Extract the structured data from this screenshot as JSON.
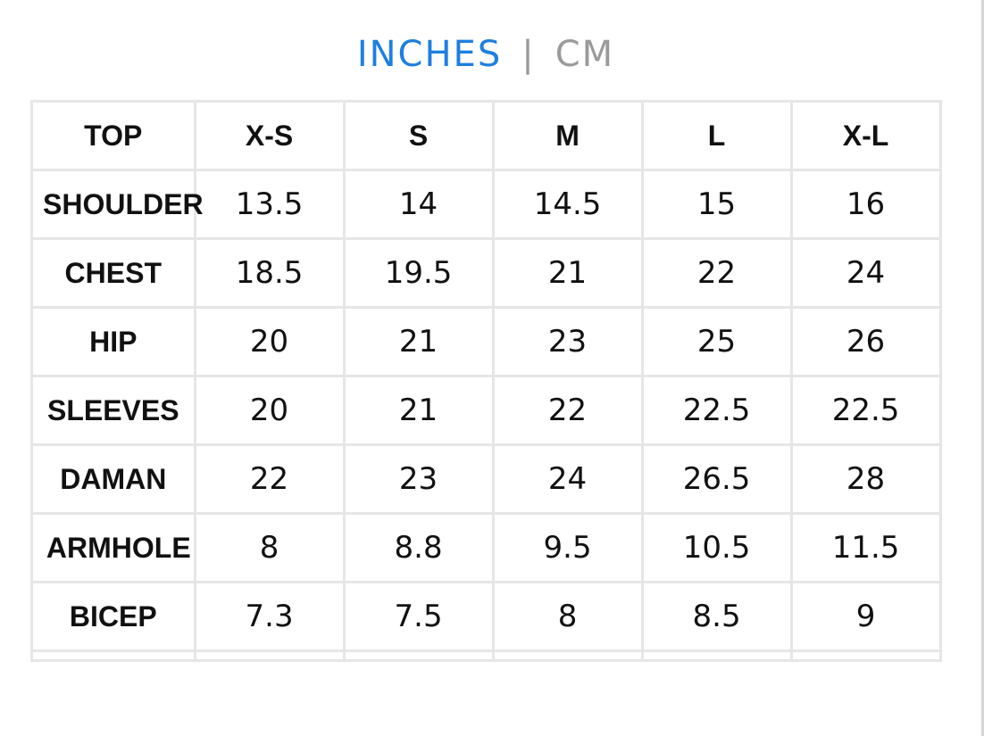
{
  "unit_toggle": {
    "inches_label": "INCHES",
    "separator": "|",
    "cm_label": "CM",
    "active": "INCHES",
    "active_color": "#1e7fe0",
    "inactive_color": "#9a9a9a"
  },
  "table": {
    "header": [
      "TOP",
      "X-S",
      "S",
      "M",
      "L",
      "X-L"
    ],
    "rows": [
      {
        "label": "SHOULDER",
        "values": [
          "13.5",
          "14",
          "14.5",
          "15",
          "16"
        ]
      },
      {
        "label": "CHEST",
        "values": [
          "18.5",
          "19.5",
          "21",
          "22",
          "24"
        ]
      },
      {
        "label": "HIP",
        "values": [
          "20",
          "21",
          "23",
          "25",
          "26"
        ]
      },
      {
        "label": "SLEEVES",
        "values": [
          "20",
          "21",
          "22",
          "22.5",
          "22.5"
        ]
      },
      {
        "label": "DAMAN",
        "values": [
          "22",
          "23",
          "24",
          "26.5",
          "28"
        ]
      },
      {
        "label": "ARMHOLE",
        "values": [
          "8",
          "8.8",
          "9.5",
          "10.5",
          "11.5"
        ]
      },
      {
        "label": "BICEP",
        "values": [
          "7.3",
          "7.5",
          "8",
          "8.5",
          "9"
        ]
      }
    ]
  }
}
